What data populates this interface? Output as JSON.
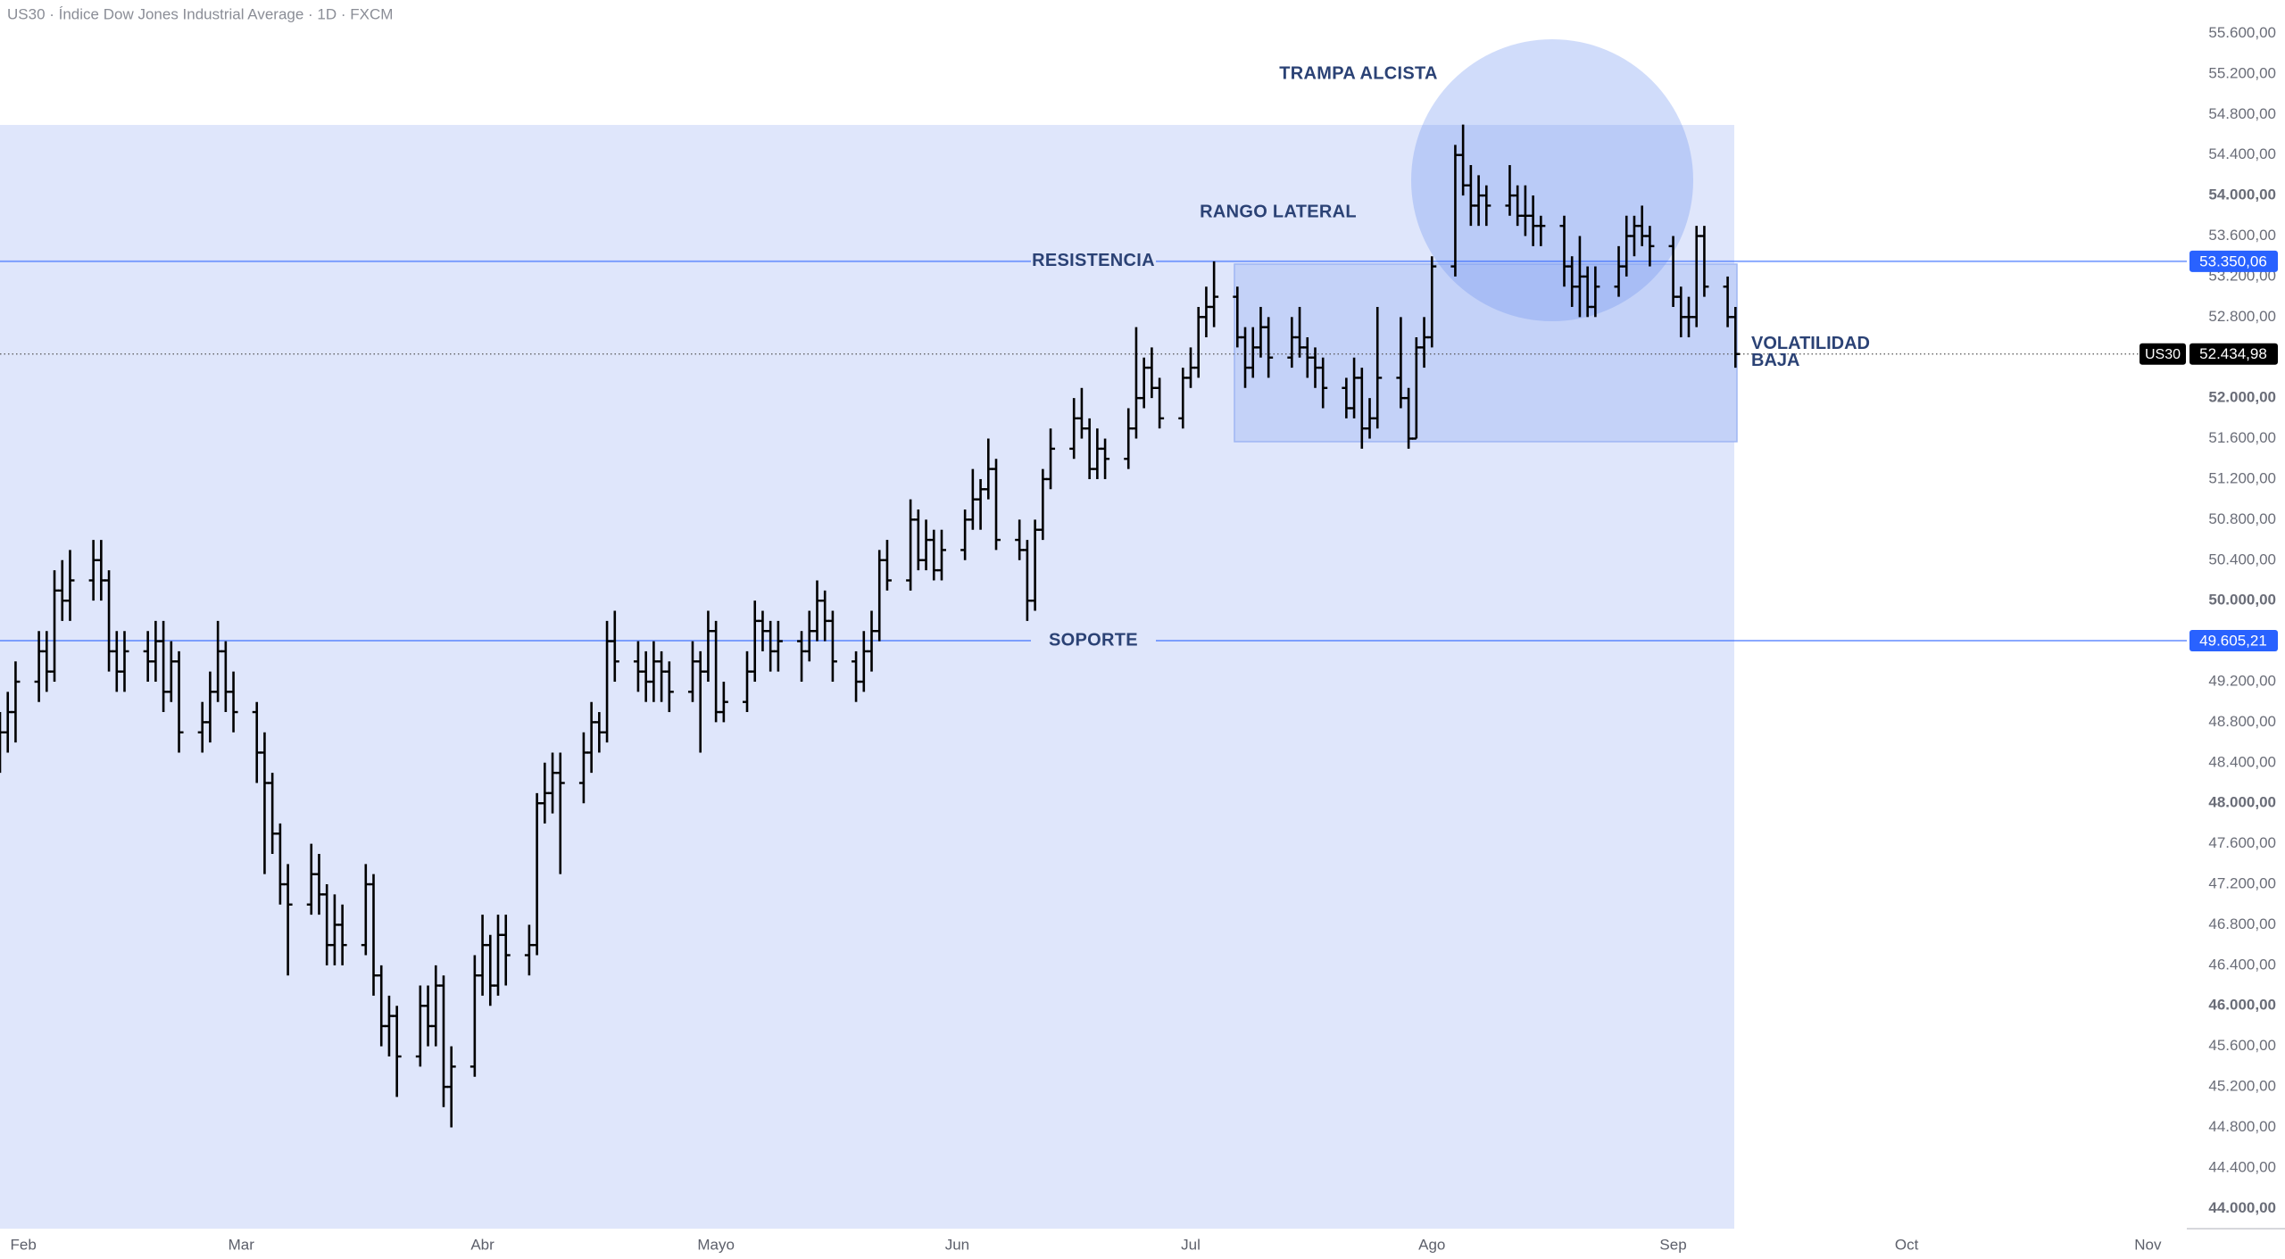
{
  "chart_data": {
    "type": "ohlc",
    "title": "US30 · Índice Dow Jones Industrial Average · 1D · FXCM",
    "x": [
      -3,
      -2,
      -1,
      2,
      3,
      4,
      5,
      6,
      9,
      10,
      11,
      12,
      13,
      16,
      17,
      18,
      19,
      20,
      23,
      24,
      25,
      26,
      27,
      30,
      31,
      32,
      33,
      34,
      37,
      38,
      39,
      40,
      41,
      44,
      45,
      46,
      47,
      48,
      51,
      52,
      53,
      54,
      55,
      58,
      59,
      60,
      61,
      62,
      65,
      66,
      67,
      68,
      69,
      72,
      73,
      74,
      75,
      76,
      79,
      80,
      81,
      82,
      83,
      86,
      87,
      88,
      89,
      90,
      93,
      94,
      95,
      96,
      97,
      100,
      101,
      102,
      103,
      104,
      107,
      108,
      109,
      110,
      111,
      114,
      115,
      116,
      117,
      118,
      121,
      122,
      123,
      124,
      125,
      128,
      129,
      130,
      131,
      132,
      135,
      136,
      137,
      138,
      139,
      142,
      143,
      144,
      145,
      146,
      149,
      150,
      151,
      152,
      153,
      156,
      157,
      158,
      159,
      160,
      163,
      164,
      165,
      166,
      167,
      170,
      171,
      172,
      173,
      174,
      177,
      178,
      179,
      180,
      181,
      184,
      185,
      186,
      187,
      188,
      191,
      192,
      193,
      194,
      195,
      198,
      199,
      200,
      201,
      202,
      205,
      206,
      207,
      208,
      209,
      212,
      213,
      214,
      215,
      216,
      219,
      220
    ],
    "open": [
      48500,
      48700,
      48900,
      49200,
      49500,
      49300,
      50100,
      50000,
      50200,
      50400,
      50200,
      49500,
      49300,
      49500,
      49400,
      49600,
      49100,
      49400,
      48700,
      48800,
      49100,
      49500,
      49100,
      48900,
      48500,
      48200,
      47700,
      47200,
      47000,
      47300,
      47100,
      46600,
      46800,
      46600,
      47200,
      46300,
      45800,
      45900,
      45500,
      46000,
      45800,
      46200,
      45200,
      45400,
      46300,
      46600,
      46200,
      46700,
      46500,
      46600,
      48000,
      48100,
      48300,
      48200,
      48500,
      48800,
      48700,
      49600,
      49400,
      49300,
      49200,
      49400,
      49300,
      49100,
      49400,
      49300,
      49700,
      48900,
      49000,
      49300,
      49800,
      49700,
      49500,
      49600,
      49500,
      49700,
      50000,
      49800,
      49400,
      49200,
      49500,
      49700,
      50400,
      50200,
      50800,
      50400,
      50600,
      50300,
      50500,
      50800,
      51000,
      51100,
      51300,
      50600,
      50500,
      50000,
      50700,
      51200,
      51500,
      51800,
      51700,
      51300,
      51500,
      51400,
      51700,
      52000,
      52300,
      52100,
      51800,
      52200,
      52300,
      52800,
      52900,
      53000,
      52600,
      52300,
      52500,
      52700,
      52400,
      52600,
      52500,
      52400,
      52300,
      52100,
      51900,
      52200,
      51700,
      51800,
      52200,
      52000,
      51600,
      52500,
      52600,
      53300,
      54400,
      54100,
      53900,
      54000,
      53900,
      54000,
      53800,
      53800,
      53700,
      53700,
      53300,
      53100,
      53200,
      52900,
      53100,
      53300,
      53600,
      53700,
      53600,
      53500,
      53000,
      52800,
      52800,
      53600,
      53100,
      52800
    ],
    "high": [
      48900,
      49100,
      49400,
      49700,
      49700,
      50300,
      50400,
      50500,
      50600,
      50600,
      50300,
      49700,
      49700,
      49700,
      49800,
      49800,
      49600,
      49500,
      49000,
      49300,
      49800,
      49600,
      49300,
      49000,
      48700,
      48300,
      47800,
      47400,
      47600,
      47500,
      47200,
      47100,
      47000,
      47400,
      47300,
      46400,
      46100,
      46000,
      46200,
      46200,
      46400,
      46300,
      45600,
      46500,
      46900,
      46700,
      46900,
      46900,
      46800,
      48100,
      48400,
      48500,
      48500,
      48700,
      49000,
      48900,
      49800,
      49900,
      49600,
      49500,
      49600,
      49500,
      49400,
      49600,
      49500,
      49900,
      49800,
      49200,
      49500,
      50000,
      49900,
      49800,
      49800,
      49700,
      49900,
      50200,
      50100,
      49900,
      49500,
      49700,
      49900,
      50500,
      50600,
      51000,
      50900,
      50800,
      50700,
      50700,
      50900,
      51300,
      51200,
      51600,
      51400,
      50800,
      50600,
      50800,
      51300,
      51700,
      52000,
      52100,
      51800,
      51700,
      51600,
      51900,
      52700,
      52400,
      52500,
      52200,
      52300,
      52500,
      52900,
      53100,
      53350,
      53100,
      52700,
      52700,
      52900,
      52800,
      52800,
      52900,
      52600,
      52500,
      52400,
      52200,
      52400,
      52300,
      52000,
      52900,
      52800,
      52100,
      52600,
      52800,
      53400,
      54500,
      54700,
      54300,
      54200,
      54100,
      54300,
      54100,
      54100,
      54000,
      53800,
      53800,
      53400,
      53600,
      53300,
      53300,
      53500,
      53800,
      53800,
      53900,
      53700,
      53600,
      53100,
      53000,
      53700,
      53700,
      53200,
      52900
    ],
    "low": [
      48300,
      48500,
      48600,
      49000,
      49100,
      49200,
      49800,
      49800,
      50000,
      50000,
      49300,
      49100,
      49100,
      49200,
      49200,
      48900,
      49000,
      48500,
      48500,
      48600,
      49000,
      48900,
      48700,
      48200,
      47300,
      47500,
      47000,
      46300,
      46900,
      46900,
      46400,
      46400,
      46400,
      46500,
      46100,
      45600,
      45500,
      45100,
      45400,
      45600,
      45600,
      45000,
      44800,
      45300,
      46100,
      46000,
      46100,
      46200,
      46300,
      46500,
      47800,
      47900,
      47300,
      48000,
      48300,
      48500,
      48600,
      49200,
      49100,
      49000,
      49000,
      49000,
      48900,
      49000,
      48500,
      49200,
      48800,
      48800,
      48900,
      49200,
      49500,
      49300,
      49300,
      49200,
      49400,
      49600,
      49600,
      49200,
      49000,
      49100,
      49300,
      49600,
      50100,
      50100,
      50300,
      50300,
      50200,
      50200,
      50400,
      50700,
      50700,
      51000,
      50500,
      50400,
      49800,
      49900,
      50600,
      51100,
      51400,
      51600,
      51200,
      51200,
      51200,
      51300,
      51600,
      51900,
      52000,
      51700,
      51700,
      52100,
      52200,
      52600,
      52700,
      52500,
      52100,
      52200,
      52400,
      52200,
      52300,
      52400,
      52200,
      52100,
      51900,
      51800,
      51800,
      51500,
      51600,
      51700,
      51900,
      51500,
      51600,
      52300,
      52500,
      53200,
      54000,
      53700,
      53700,
      53700,
      53800,
      53700,
      53600,
      53500,
      53500,
      53100,
      52900,
      52800,
      52800,
      52800,
      53000,
      53200,
      53400,
      53500,
      53300,
      52900,
      52600,
      52600,
      52700,
      53000,
      52700,
      52300
    ],
    "close": [
      48700,
      48900,
      49200,
      49500,
      49300,
      50100,
      50000,
      50200,
      50400,
      50200,
      49500,
      49300,
      49500,
      49400,
      49600,
      49100,
      49400,
      48700,
      48800,
      49100,
      49500,
      49100,
      48900,
      48500,
      48200,
      47700,
      47200,
      47000,
      47300,
      47100,
      46600,
      46800,
      46600,
      47200,
      46300,
      45800,
      45900,
      45500,
      46000,
      45800,
      46200,
      45200,
      45400,
      46300,
      46600,
      46200,
      46700,
      46500,
      46600,
      48000,
      48100,
      48300,
      48200,
      48500,
      48800,
      48700,
      49600,
      49400,
      49300,
      49200,
      49400,
      49300,
      49100,
      49400,
      49300,
      49700,
      48900,
      49000,
      49300,
      49800,
      49700,
      49500,
      49600,
      49500,
      49700,
      50000,
      49800,
      49400,
      49200,
      49500,
      49700,
      50400,
      50200,
      50800,
      50400,
      50600,
      50300,
      50500,
      50800,
      51000,
      51100,
      51300,
      50600,
      50500,
      50000,
      50700,
      51200,
      51500,
      51800,
      51700,
      51300,
      51500,
      51400,
      51700,
      52000,
      52300,
      52100,
      51800,
      52200,
      52300,
      52800,
      52900,
      53000,
      52600,
      52300,
      52500,
      52700,
      52400,
      52600,
      52500,
      52400,
      52300,
      52100,
      51900,
      52200,
      51700,
      51800,
      52200,
      52000,
      51600,
      52500,
      52600,
      53300,
      54400,
      54100,
      53900,
      54000,
      53900,
      54000,
      53800,
      53800,
      53700,
      53700,
      53300,
      53100,
      53200,
      52900,
      53100,
      53300,
      53600,
      53700,
      53600,
      53500,
      53000,
      52800,
      52800,
      53600,
      53100,
      52800,
      52435
    ],
    "color": "#000000",
    "xlim": [
      -3,
      278
    ],
    "xticks": [
      {
        "value": 0,
        "label": "Feb"
      },
      {
        "value": 28,
        "label": "Mar"
      },
      {
        "value": 59,
        "label": "Abr"
      },
      {
        "value": 89,
        "label": "Mayo"
      },
      {
        "value": 120,
        "label": "Jun"
      },
      {
        "value": 150,
        "label": "Jul"
      },
      {
        "value": 181,
        "label": "Ago"
      },
      {
        "value": 212,
        "label": "Sep"
      },
      {
        "value": 242,
        "label": "Oct"
      },
      {
        "value": 273,
        "label": "Nov"
      }
    ],
    "ylim": [
      43800,
      55930
    ],
    "yticks": [
      {
        "value": 44000,
        "label": "44.000,00"
      },
      {
        "value": 44400,
        "label": "44.400,00"
      },
      {
        "value": 44800,
        "label": "44.800,00"
      },
      {
        "value": 45200,
        "label": "45.200,00"
      },
      {
        "value": 45600,
        "label": "45.600,00"
      },
      {
        "value": 46000,
        "label": "46.000,00"
      },
      {
        "value": 46400,
        "label": "46.400,00"
      },
      {
        "value": 46800,
        "label": "46.800,00"
      },
      {
        "value": 47200,
        "label": "47.200,00"
      },
      {
        "value": 47600,
        "label": "47.600,00"
      },
      {
        "value": 48000,
        "label": "48.000,00"
      },
      {
        "value": 48400,
        "label": "48.400,00"
      },
      {
        "value": 48800,
        "label": "48.800,00"
      },
      {
        "value": 49200,
        "label": "49.200,00"
      },
      {
        "value": 49600,
        "label": "49.600,00"
      },
      {
        "value": 50000,
        "label": "50.000,00"
      },
      {
        "value": 50400,
        "label": "50.400,00"
      },
      {
        "value": 50800,
        "label": "50.800,00"
      },
      {
        "value": 51200,
        "label": "51.200,00"
      },
      {
        "value": 51600,
        "label": "51.600,00"
      },
      {
        "value": 52000,
        "label": "52.000,00"
      },
      {
        "value": 52400,
        "label": "52.400,00"
      },
      {
        "value": 52800,
        "label": "52.800,00"
      },
      {
        "value": 53200,
        "label": "53.200,00"
      },
      {
        "value": 53600,
        "label": "53.600,00"
      },
      {
        "value": 54000,
        "label": "54.000,00"
      },
      {
        "value": 54400,
        "label": "54.400,00"
      },
      {
        "value": 54800,
        "label": "54.800,00"
      },
      {
        "value": 55200,
        "label": "55.200,00"
      },
      {
        "value": 55600,
        "label": "55.600,00"
      }
    ],
    "grid": false,
    "levels": [
      {
        "name": "RESISTENCIA",
        "value": 53350.06,
        "label": "53.350,06",
        "color": "#2962ff"
      },
      {
        "name": "SOPORTE",
        "value": 49605.21,
        "label": "49.605,21",
        "color": "#2962ff"
      }
    ],
    "last_price": {
      "symbol": "US30",
      "value": 52434.98,
      "label": "52.434,98"
    },
    "annotations": [
      "TRAMPA ALCISTA",
      "RANGO LATERAL",
      "VOLATILIDAD BAJA"
    ]
  }
}
